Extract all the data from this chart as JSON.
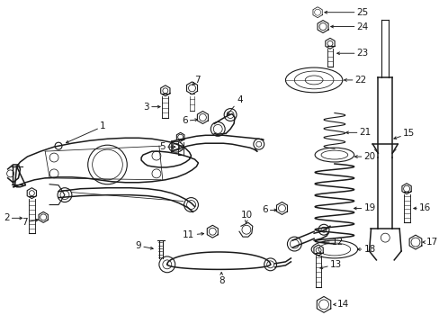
{
  "bg_color": "#ffffff",
  "line_color": "#1a1a1a",
  "fig_width": 4.89,
  "fig_height": 3.6,
  "dpi": 100,
  "label_fontsize": 7.5,
  "lw_main": 1.1,
  "lw_med": 0.8,
  "lw_thin": 0.55
}
